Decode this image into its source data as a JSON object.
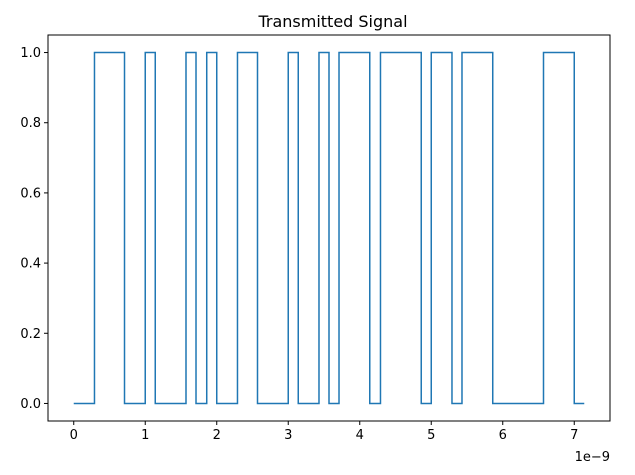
{
  "chart_data": {
    "type": "line",
    "title": "Transmitted Signal",
    "xlabel": "",
    "ylabel": "",
    "x_offset_label": "1e−9",
    "xlim": [
      -0.36,
      7.5
    ],
    "ylim": [
      -0.05,
      1.05
    ],
    "x_ticks": [
      0,
      1,
      2,
      3,
      4,
      5,
      6,
      7
    ],
    "x_tick_labels": [
      "0",
      "1",
      "2",
      "3",
      "4",
      "5",
      "6",
      "7"
    ],
    "y_ticks": [
      0.0,
      0.2,
      0.4,
      0.6,
      0.8,
      1.0
    ],
    "y_tick_labels": [
      "0.0",
      "0.2",
      "0.4",
      "0.6",
      "0.8",
      "1.0"
    ],
    "grid": false,
    "legend": "none",
    "line_color": "#1f77b4",
    "step": "post",
    "series": [
      {
        "x": [
          0.0,
          0.29,
          0.71,
          1.0,
          1.14,
          1.57,
          1.71,
          1.86,
          2.0,
          2.29,
          2.57,
          3.0,
          3.14,
          3.43,
          3.57,
          3.71,
          4.14,
          4.29,
          4.86,
          5.0,
          5.29,
          5.43,
          5.86,
          6.57,
          7.0,
          7.14
        ],
        "y": [
          0,
          1,
          0,
          1,
          0,
          1,
          0,
          1,
          0,
          1,
          0,
          1,
          0,
          1,
          0,
          1,
          0,
          1,
          0,
          1,
          0,
          1,
          0,
          1,
          0,
          0
        ]
      }
    ]
  }
}
